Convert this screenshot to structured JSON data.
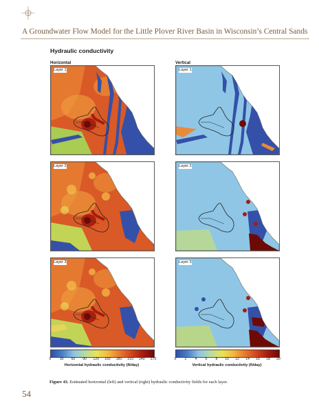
{
  "header": {
    "running_title": "A Groundwater Flow Model for the Little Plover River Basin in Wisconsin’s Central Sands"
  },
  "figure": {
    "section_title": "Hydraulic conductivity",
    "columns": {
      "left": "Horizontal",
      "right": "Vertical"
    },
    "panels": [
      {
        "label": "Layer 1",
        "field": "horizontal",
        "layer": 1
      },
      {
        "label": "Layer 1",
        "field": "vertical",
        "layer": 1
      },
      {
        "label": "Layer 2",
        "field": "horizontal",
        "layer": 2
      },
      {
        "label": "Layer 2",
        "field": "vertical",
        "layer": 2
      },
      {
        "label": "Layer 3",
        "field": "horizontal",
        "layer": 3
      },
      {
        "label": "Layer 3",
        "field": "vertical",
        "layer": 3
      }
    ],
    "colorbars": {
      "horizontal": {
        "ticks": [
          "0",
          "30",
          "60",
          "90",
          "120",
          "150",
          "180",
          "210",
          "240",
          "270"
        ],
        "label": "Horizontal hydraulic conductivity (ft/day)",
        "range": [
          0,
          270
        ]
      },
      "vertical": {
        "ticks": [
          "0",
          "2",
          "4",
          "6",
          "8",
          "10",
          "12",
          "14",
          "16",
          "18",
          "20"
        ],
        "label": "Vertical hydraulic conductivity (ft/day)",
        "range": [
          0,
          20
        ]
      }
    },
    "caption_label": "Figure 43.",
    "caption_text": "Estimated horizontal (left) and vertical (right) hydraulic conductivity fields for each layer."
  },
  "page_number": "54",
  "colors": {
    "scale": [
      "#2f4fa8",
      "#4b7fc6",
      "#8fc3e3",
      "#b8dca0",
      "#e8e25a",
      "#f3b840",
      "#e87a2e",
      "#d1461f",
      "#a61c10",
      "#6e0a06"
    ],
    "header_text": "#7a5a3a"
  }
}
